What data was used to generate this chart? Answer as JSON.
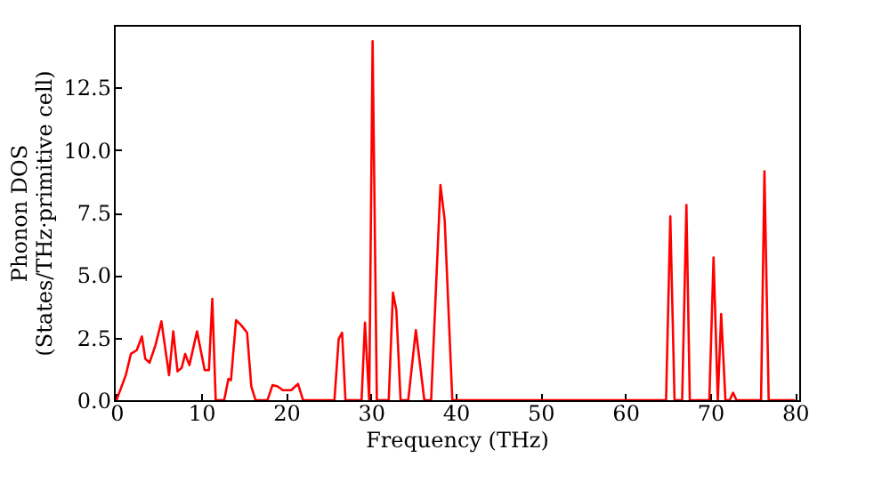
{
  "chart_data": {
    "type": "line",
    "xlabel": "Frequency (THz)",
    "ylabel": "Phonon DOS\n(States/THz·primitive cell)",
    "xlim": [
      -0.3,
      80.5
    ],
    "ylim": [
      0,
      15
    ],
    "xticks": [
      0,
      10,
      20,
      30,
      40,
      50,
      60,
      70,
      80
    ],
    "yticks": [
      {
        "value": 0,
        "label": "0.0"
      },
      {
        "value": 2.5,
        "label": "2.5"
      },
      {
        "value": 5,
        "label": "5.0"
      },
      {
        "value": 7.5,
        "label": "7.5"
      },
      {
        "value": 10,
        "label": "10.0"
      },
      {
        "value": 12.5,
        "label": "12.5"
      }
    ],
    "grid": false,
    "marker": "none",
    "line_style": "solid",
    "series": [
      {
        "color": "#ff0000",
        "x": [
          0,
          1.1,
          1.7,
          2.4,
          3.0,
          3.4,
          3.9,
          4.6,
          5.3,
          6.2,
          6.7,
          7.2,
          7.7,
          8.1,
          8.6,
          9.5,
          10.4,
          10.9,
          11.3,
          11.7,
          12.7,
          13.2,
          13.5,
          14.1,
          14.7,
          15.4,
          15.9,
          16.4,
          17.8,
          18.4,
          19.0,
          19.6,
          20.6,
          21.4,
          22.0,
          25.7,
          26.2,
          26.6,
          27.0,
          28.9,
          29.3,
          29.8,
          30.2,
          30.7,
          32.1,
          32.6,
          33.0,
          33.5,
          34.4,
          35.3,
          36.3,
          37.1,
          38.2,
          38.7,
          39.6,
          64.8,
          65.3,
          65.8,
          66.7,
          67.2,
          67.6,
          69.9,
          70.4,
          70.9,
          71.3,
          71.8,
          72.3,
          72.7,
          73.1,
          76.0,
          76.4,
          76.9,
          80.0
        ],
        "values": [
          0,
          1.0,
          1.85,
          2.0,
          2.55,
          1.65,
          1.5,
          2.2,
          3.15,
          1.0,
          2.75,
          1.15,
          1.3,
          1.85,
          1.4,
          2.75,
          1.2,
          1.2,
          4.05,
          0,
          0,
          0.85,
          0.8,
          3.2,
          3.0,
          2.7,
          0.55,
          0,
          0,
          0.6,
          0.55,
          0.4,
          0.4,
          0.65,
          0,
          0,
          2.45,
          2.7,
          0,
          0,
          3.1,
          0,
          14.35,
          0,
          0,
          4.3,
          3.6,
          0,
          0,
          2.8,
          0,
          0,
          8.6,
          7.2,
          0,
          0,
          7.35,
          0,
          0,
          7.8,
          0,
          0,
          5.7,
          0,
          3.45,
          0,
          0,
          0.3,
          0,
          0,
          9.15,
          0,
          0
        ]
      }
    ]
  }
}
